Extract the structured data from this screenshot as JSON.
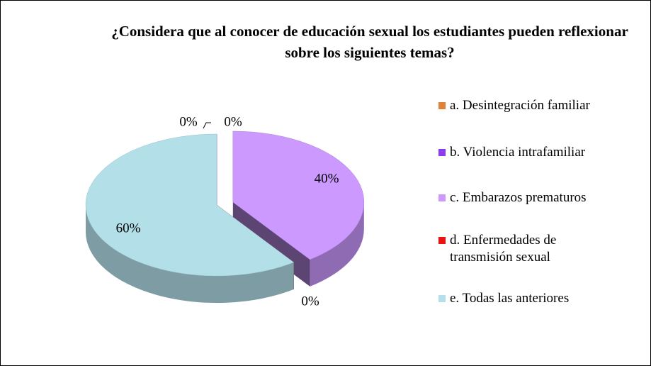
{
  "chart_data": {
    "type": "pie",
    "title": "¿Considera que al conocer de educación sexual los estudiantes pueden  reflexionar sobre los siguientes temas?",
    "categories": [
      "a. Desintegración familiar",
      "b. Violencia intrafamiliar",
      "c. Embarazos prematuros",
      "d. Enfermedades de transmisión sexual",
      "e. Todas las anteriores"
    ],
    "values": [
      0,
      0,
      40,
      0,
      60
    ],
    "value_labels": [
      "0%",
      "0%",
      "40%",
      "0%",
      "60%"
    ],
    "colors": [
      "#e0833a",
      "#8a3cf0",
      "#cc99ff",
      "#ee1111",
      "#b3dfe9"
    ],
    "explode": [
      false,
      false,
      true,
      false,
      false
    ],
    "legend": "right"
  }
}
